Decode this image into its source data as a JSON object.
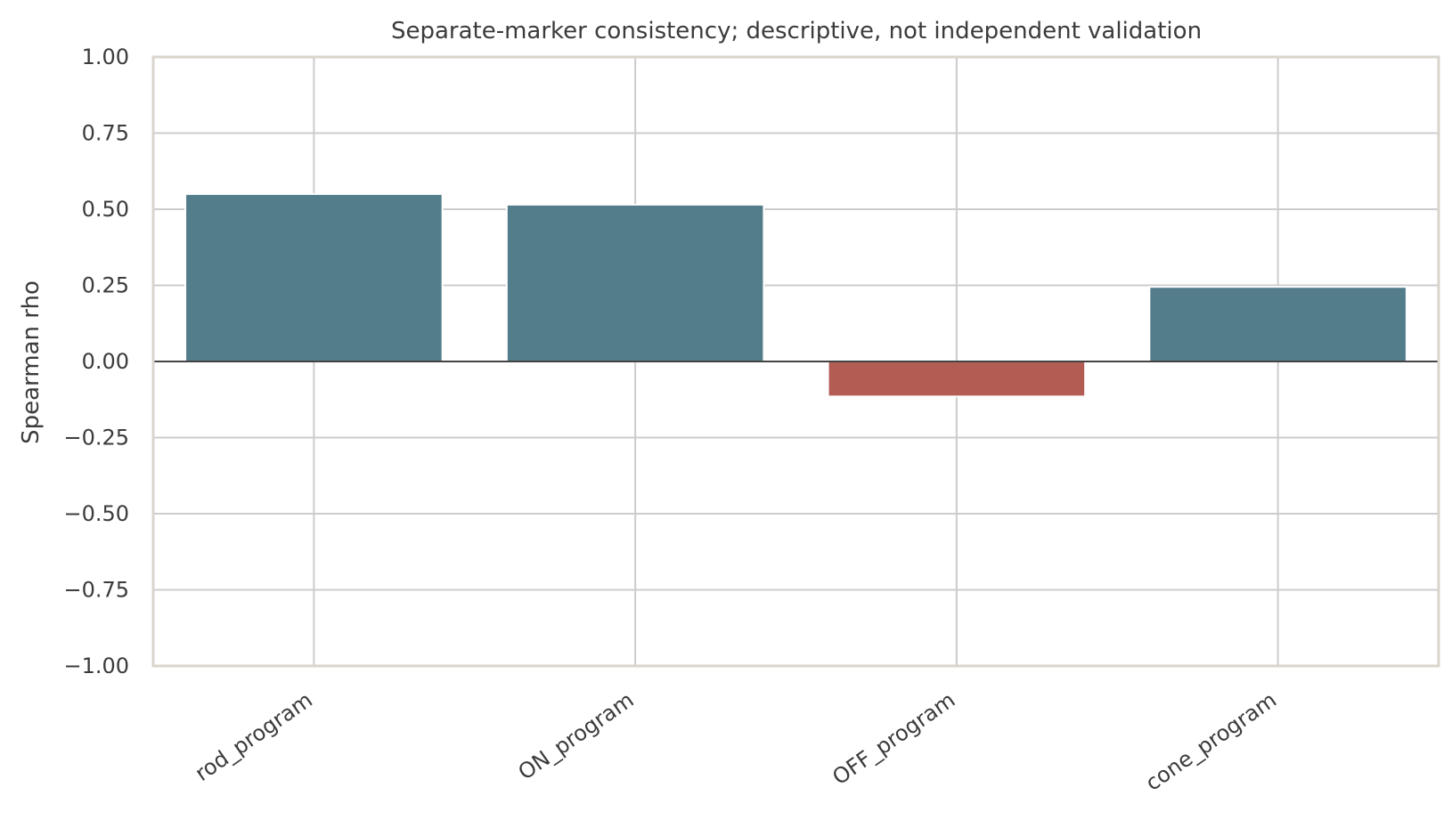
{
  "chart_data": {
    "type": "bar",
    "title": "Separate-marker consistency; descriptive, not independent validation",
    "xlabel": "",
    "ylabel": "Spearman rho",
    "categories": [
      "rod_program",
      "ON_program",
      "OFF_program",
      "cone_program"
    ],
    "values": [
      0.55,
      0.515,
      -0.115,
      0.245
    ],
    "ylim": [
      -1.0,
      1.0
    ],
    "yticks": [
      1.0,
      0.75,
      0.5,
      0.25,
      0.0,
      -0.25,
      -0.5,
      -0.75,
      -1.0
    ],
    "ytick_labels": [
      "1.00",
      "0.75",
      "0.50",
      "0.25",
      "0.00",
      "−0.25",
      "−0.50",
      "−0.75",
      "−1.00"
    ],
    "grid": true,
    "zero_line": true,
    "colors": {
      "positive": "#537d8b",
      "negative": "#b35c54",
      "grid": "#cccccc",
      "frame": "#d9d5cc",
      "zero_line": "#444444",
      "text": "#3b3b3b"
    }
  }
}
